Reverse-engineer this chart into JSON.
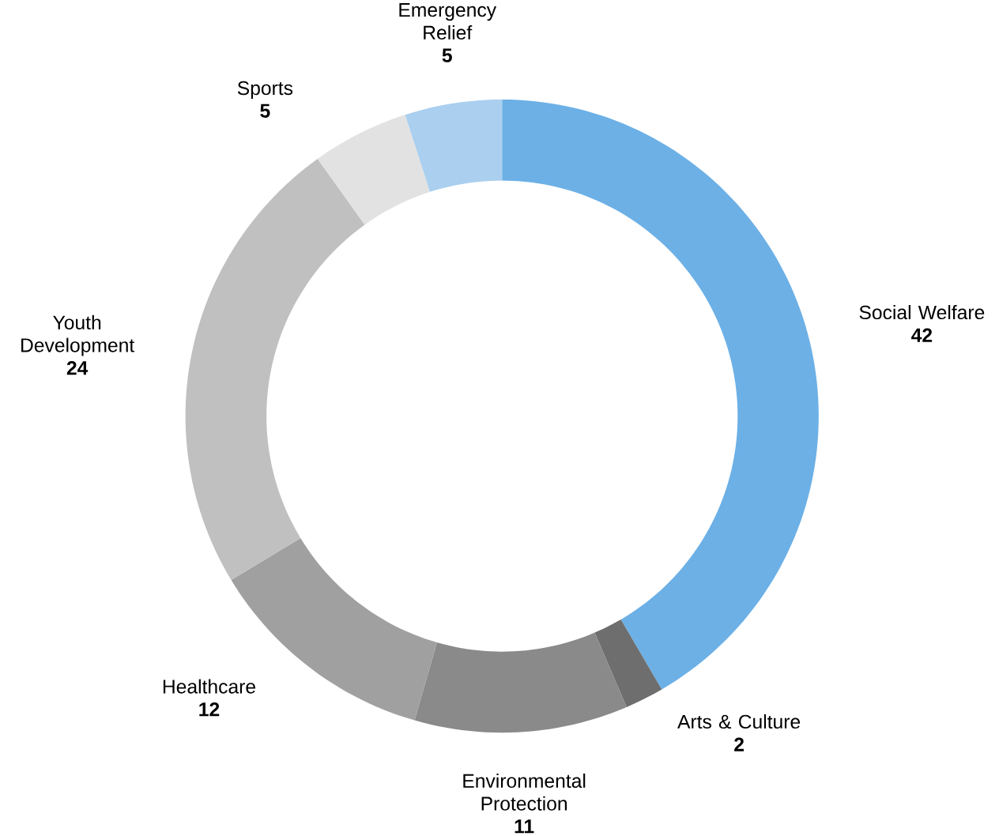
{
  "chart_data": {
    "type": "donut",
    "categories": [
      "Social Welfare",
      "Arts & Culture",
      "Environmental Protection",
      "Healthcare",
      "Youth Development",
      "Sports",
      "Emergency Relief"
    ],
    "values": [
      42,
      2,
      11,
      12,
      24,
      5,
      5
    ],
    "colors": [
      "#6cb0e6",
      "#6e6e6e",
      "#8a8a8a",
      "#a0a0a0",
      "#c0c0c0",
      "#e2e2e2",
      "#aacfef"
    ],
    "data_labels": true
  }
}
